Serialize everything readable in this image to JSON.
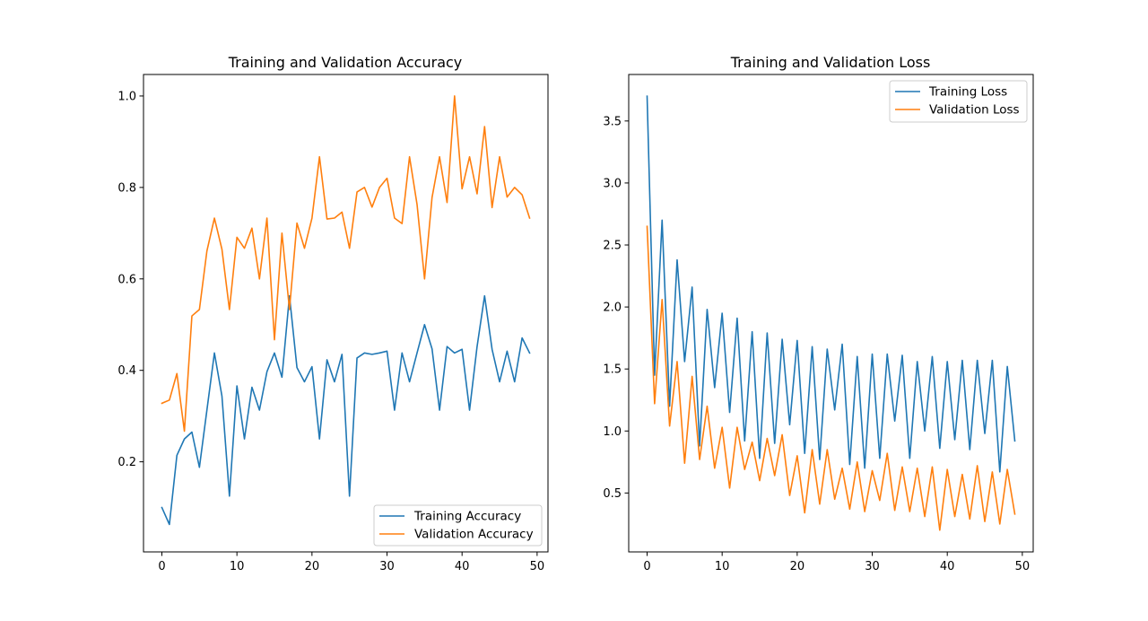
{
  "chart_data": [
    {
      "type": "line",
      "title": "Training and Validation Accuracy",
      "xlabel": "",
      "ylabel": "",
      "xlim": [
        -2.45,
        51.45
      ],
      "ylim": [
        0.003,
        1.047
      ],
      "xticks": [
        0,
        10,
        20,
        30,
        40,
        50
      ],
      "yticks": [
        0.2,
        0.4,
        0.6,
        0.8,
        1.0
      ],
      "ytick_labels": [
        "0.2",
        "0.4",
        "0.6",
        "0.8",
        "1.0"
      ],
      "grid": false,
      "legend_position": "lower-right",
      "x": [
        0,
        1,
        2,
        3,
        4,
        5,
        6,
        7,
        8,
        9,
        10,
        11,
        12,
        13,
        14,
        15,
        16,
        17,
        18,
        19,
        20,
        21,
        22,
        23,
        24,
        25,
        26,
        27,
        28,
        29,
        30,
        31,
        32,
        33,
        34,
        35,
        36,
        37,
        38,
        39,
        40,
        41,
        42,
        43,
        44,
        45,
        46,
        47,
        48,
        49
      ],
      "series": [
        {
          "name": "Training Accuracy",
          "color": "#1f77b4",
          "values": [
            0.1,
            0.063,
            0.214,
            0.25,
            0.265,
            0.188,
            0.313,
            0.438,
            0.344,
            0.125,
            0.366,
            0.25,
            0.363,
            0.313,
            0.397,
            0.438,
            0.385,
            0.563,
            0.406,
            0.375,
            0.408,
            0.25,
            0.423,
            0.375,
            0.435,
            0.125,
            0.427,
            0.438,
            0.435,
            0.438,
            0.442,
            0.313,
            0.438,
            0.375,
            0.438,
            0.5,
            0.447,
            0.313,
            0.452,
            0.438,
            0.446,
            0.313,
            0.452,
            0.563,
            0.446,
            0.375,
            0.442,
            0.375,
            0.471,
            0.438
          ]
        },
        {
          "name": "Validation Accuracy",
          "color": "#ff7f0e",
          "values": [
            0.328,
            0.335,
            0.393,
            0.267,
            0.519,
            0.533,
            0.661,
            0.733,
            0.665,
            0.533,
            0.691,
            0.667,
            0.711,
            0.6,
            0.733,
            0.467,
            0.7,
            0.533,
            0.722,
            0.667,
            0.733,
            0.867,
            0.731,
            0.733,
            0.746,
            0.667,
            0.79,
            0.8,
            0.757,
            0.8,
            0.82,
            0.733,
            0.721,
            0.867,
            0.763,
            0.6,
            0.778,
            0.867,
            0.767,
            1.0,
            0.797,
            0.867,
            0.786,
            0.933,
            0.756,
            0.867,
            0.779,
            0.8,
            0.784,
            0.733
          ]
        }
      ]
    },
    {
      "type": "line",
      "title": "Training and Validation Loss",
      "xlabel": "",
      "ylabel": "",
      "xlim": [
        -2.45,
        51.45
      ],
      "ylim": [
        0.025,
        3.875
      ],
      "xticks": [
        0,
        10,
        20,
        30,
        40,
        50
      ],
      "yticks": [
        0.5,
        1.0,
        1.5,
        2.0,
        2.5,
        3.0,
        3.5
      ],
      "ytick_labels": [
        "0.5",
        "1.0",
        "1.5",
        "2.0",
        "2.5",
        "3.0",
        "3.5"
      ],
      "grid": false,
      "legend_position": "upper-right",
      "x": [
        0,
        1,
        2,
        3,
        4,
        5,
        6,
        7,
        8,
        9,
        10,
        11,
        12,
        13,
        14,
        15,
        16,
        17,
        18,
        19,
        20,
        21,
        22,
        23,
        24,
        25,
        26,
        27,
        28,
        29,
        30,
        31,
        32,
        33,
        34,
        35,
        36,
        37,
        38,
        39,
        40,
        41,
        42,
        43,
        44,
        45,
        46,
        47,
        48,
        49
      ],
      "series": [
        {
          "name": "Training Loss",
          "color": "#1f77b4",
          "values": [
            3.7,
            1.45,
            2.7,
            1.2,
            2.38,
            1.56,
            2.16,
            0.88,
            1.98,
            1.35,
            1.95,
            1.15,
            1.91,
            0.92,
            1.8,
            0.78,
            1.79,
            0.9,
            1.74,
            1.05,
            1.73,
            0.82,
            1.68,
            0.77,
            1.66,
            1.17,
            1.7,
            0.73,
            1.6,
            0.7,
            1.62,
            0.78,
            1.62,
            1.08,
            1.61,
            0.78,
            1.56,
            1.0,
            1.6,
            0.86,
            1.56,
            0.93,
            1.57,
            0.85,
            1.57,
            0.98,
            1.57,
            0.67,
            1.52,
            0.92
          ]
        },
        {
          "name": "Validation Loss",
          "color": "#ff7f0e",
          "values": [
            2.65,
            1.22,
            2.06,
            1.04,
            1.56,
            0.74,
            1.44,
            0.77,
            1.2,
            0.7,
            1.03,
            0.54,
            1.03,
            0.69,
            0.91,
            0.6,
            0.94,
            0.64,
            0.97,
            0.48,
            0.8,
            0.34,
            0.85,
            0.41,
            0.85,
            0.45,
            0.7,
            0.37,
            0.75,
            0.35,
            0.68,
            0.44,
            0.82,
            0.36,
            0.71,
            0.35,
            0.7,
            0.31,
            0.71,
            0.2,
            0.69,
            0.31,
            0.65,
            0.29,
            0.72,
            0.27,
            0.67,
            0.25,
            0.69,
            0.33
          ]
        }
      ]
    }
  ]
}
